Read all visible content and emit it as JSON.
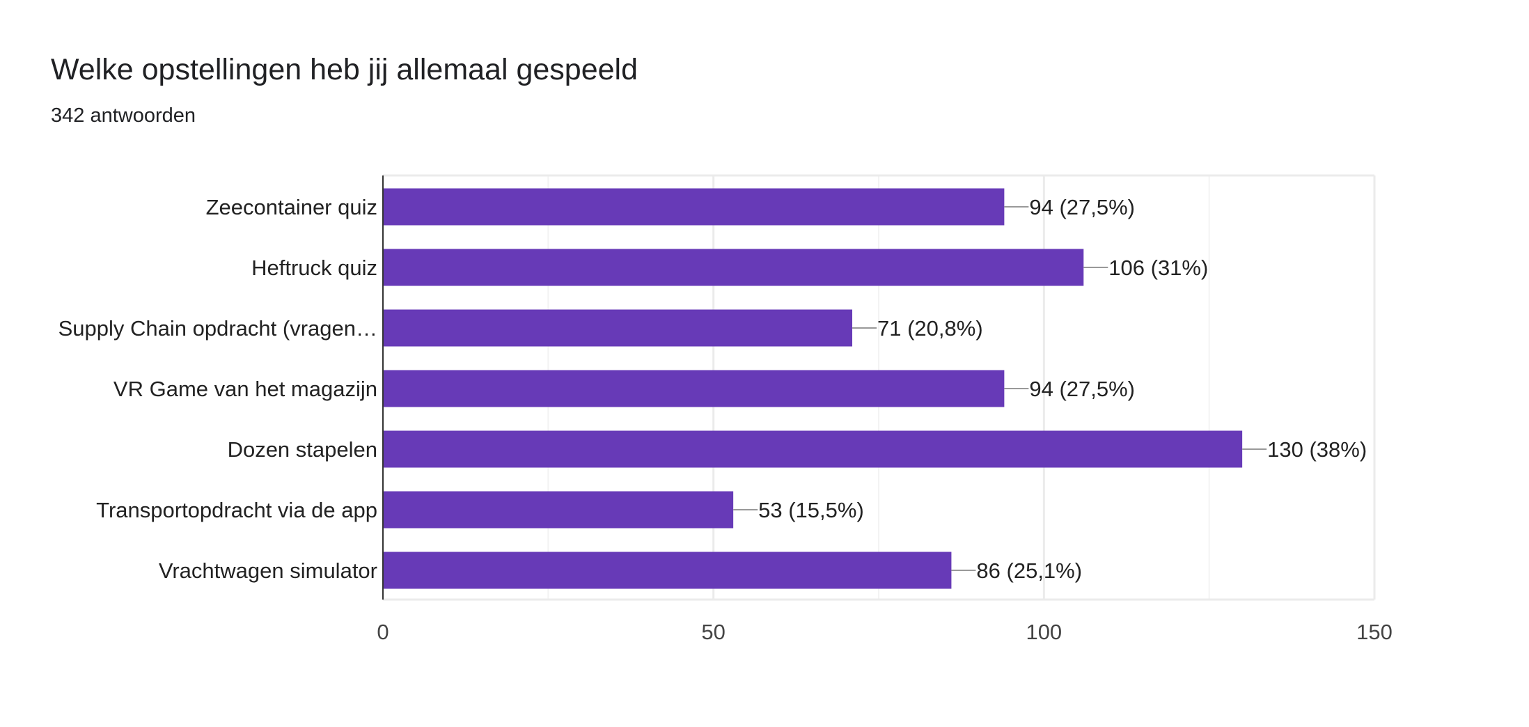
{
  "chart_data": {
    "type": "bar",
    "orientation": "horizontal",
    "title": "Welke opstellingen heb jij allemaal gespeeld",
    "subtitle": "342 antwoorden",
    "categories": [
      "Zeecontainer quiz",
      "Heftruck quiz",
      "Supply Chain opdracht (vragen…",
      "VR Game van het magazijn",
      "Dozen stapelen",
      "Transportopdracht via de app",
      "Vrachtwagen simulator"
    ],
    "values": [
      94,
      106,
      71,
      94,
      130,
      53,
      86
    ],
    "data_labels": [
      "94 (27,5%)",
      "106 (31%)",
      "71 (20,8%)",
      "94 (27,5%)",
      "130 (38%)",
      "53 (15,5%)",
      "86 (25,1%)"
    ],
    "xlim": [
      0,
      150
    ],
    "xticks": [
      "0",
      "50",
      "100",
      "150"
    ],
    "xtick_values": [
      0,
      50,
      100,
      150
    ],
    "minor_grid": [
      25,
      75,
      125
    ],
    "grid": true,
    "bar_color": "#673ab7"
  }
}
